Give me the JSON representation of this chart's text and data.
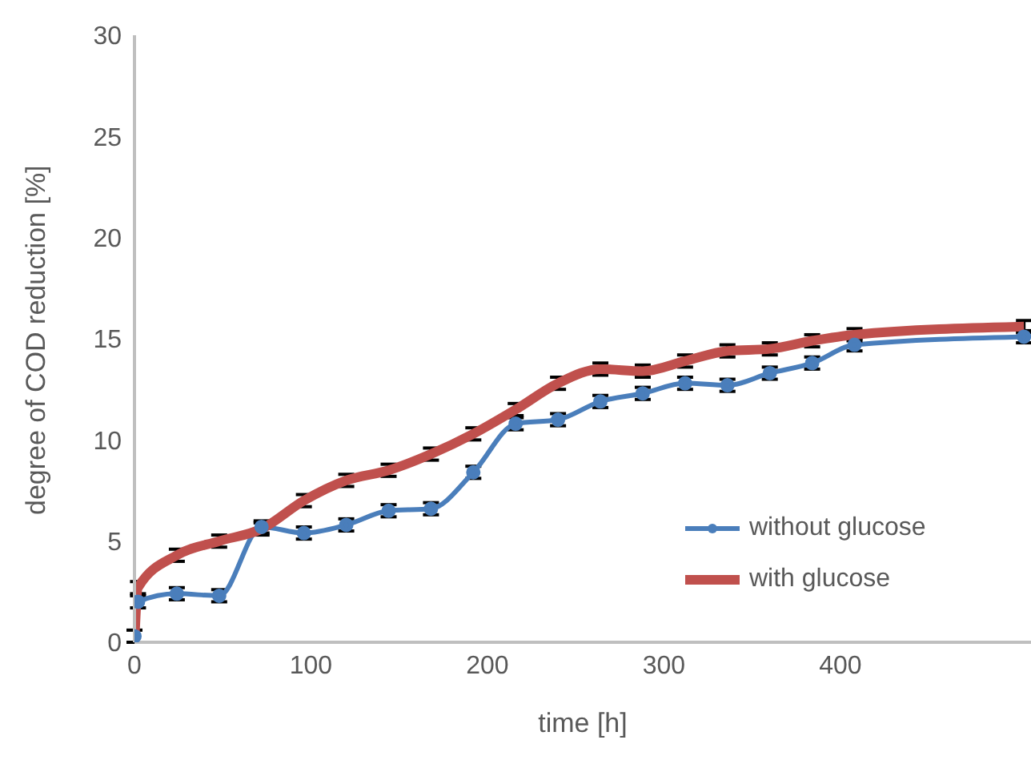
{
  "chart_data": {
    "type": "line",
    "xlabel": "time [h]",
    "ylabel": "degree of COD reduction [%]",
    "x": [
      0,
      2,
      24,
      48,
      72,
      96,
      120,
      144,
      168,
      192,
      216,
      240,
      264,
      288,
      312,
      336,
      360,
      384,
      408,
      504
    ],
    "xlim": [
      0,
      508
    ],
    "xticks": [
      0,
      100,
      200,
      300,
      400
    ],
    "ylim": [
      0,
      30
    ],
    "yticks": [
      0,
      5,
      10,
      15,
      20,
      25,
      30
    ],
    "grid": false,
    "legend": "bottom right",
    "series": [
      {
        "name": "without glucose",
        "color": "#4a7ebb",
        "marker": "circle",
        "values": [
          0.3,
          2.0,
          2.4,
          2.3,
          5.7,
          5.4,
          5.8,
          6.5,
          6.6,
          8.4,
          10.8,
          11.0,
          11.9,
          12.3,
          12.8,
          12.7,
          13.3,
          13.8,
          14.7,
          15.1
        ],
        "errors": [
          0.3,
          0.3,
          0.3,
          0.3,
          0.3,
          0.3,
          0.3,
          0.3,
          0.3,
          0.3,
          0.3,
          0.3,
          0.3,
          0.3,
          0.3,
          0.3,
          0.3,
          0.3,
          0.3,
          0.3
        ]
      },
      {
        "name": "with glucose",
        "color": "#c0504d",
        "marker": "none",
        "values": [
          0,
          2.7,
          4.3,
          5.0,
          5.6,
          7.0,
          8.0,
          8.5,
          9.3,
          10.3,
          11.5,
          12.8,
          13.5,
          13.4,
          13.9,
          14.4,
          14.5,
          14.9,
          15.2,
          15.6
        ],
        "errors": [
          null,
          0.3,
          0.3,
          0.3,
          0.3,
          0.3,
          0.3,
          0.3,
          0.3,
          0.3,
          0.3,
          0.3,
          0.3,
          0.3,
          0.3,
          0.3,
          0.3,
          0.3,
          0.3,
          0.3
        ]
      }
    ]
  }
}
